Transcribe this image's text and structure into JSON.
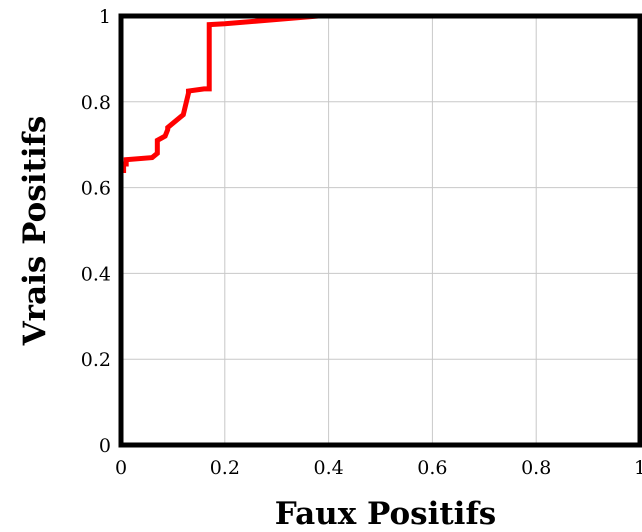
{
  "chart_data": {
    "type": "line",
    "xlabel": "Faux Positifs",
    "ylabel": "Vrais Positifs",
    "xlim": [
      0,
      1
    ],
    "ylim": [
      0,
      1
    ],
    "grid": true,
    "x_ticks": [
      0,
      0.2,
      0.4,
      0.6,
      0.8,
      1
    ],
    "y_ticks": [
      0,
      0.2,
      0.4,
      0.6,
      0.8,
      1
    ],
    "x_tick_labels": [
      "0",
      "0.2",
      "0.4",
      "0.6",
      "0.8",
      "1"
    ],
    "y_tick_labels": [
      "0",
      "0.2",
      "0.4",
      "0.6",
      "0.8",
      "1"
    ],
    "series": [
      {
        "color": "#ff0000",
        "x": [
          0,
          0,
          0.005,
          0.005,
          0.01,
          0.01,
          0.06,
          0.07,
          0.07,
          0.085,
          0.09,
          0.09,
          0.115,
          0.12,
          0.13,
          0.13,
          0.16,
          0.17,
          0.17,
          0.2,
          0.38,
          0.4,
          1.0
        ],
        "y": [
          0,
          0.64,
          0.64,
          0.655,
          0.655,
          0.665,
          0.67,
          0.68,
          0.71,
          0.72,
          0.735,
          0.74,
          0.765,
          0.77,
          0.82,
          0.825,
          0.83,
          0.83,
          0.98,
          0.982,
          1.0,
          1.0,
          1.0
        ]
      }
    ]
  }
}
